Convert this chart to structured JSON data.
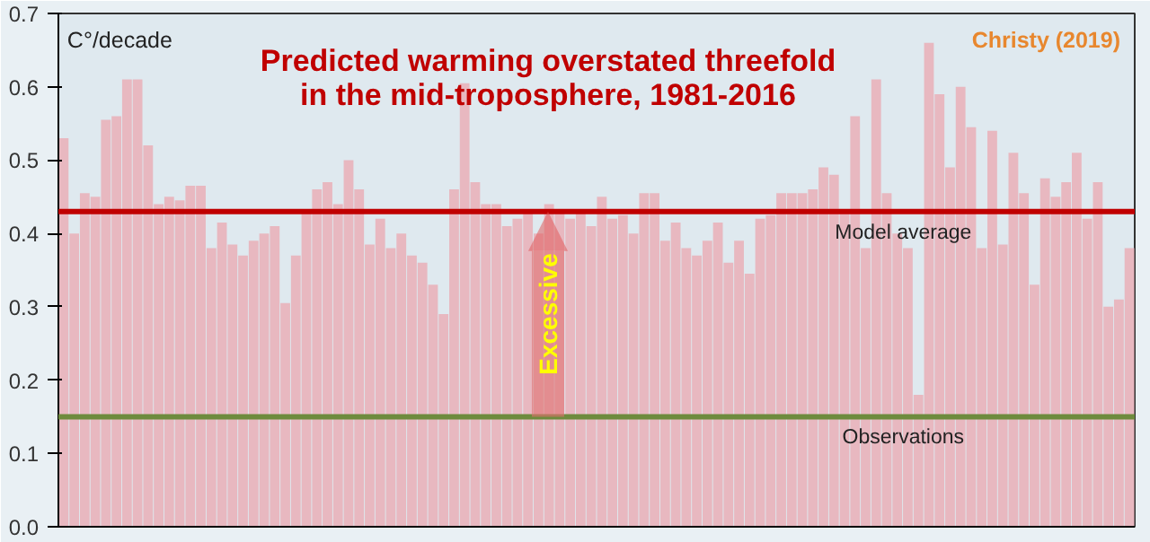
{
  "chart_data": {
    "type": "bar",
    "title": "Predicted warming overstated threefold\nin the mid-troposphere, 1981-2016",
    "ylabel": "C°/decade",
    "annotations": [
      "Christy (2019)",
      "Excessive"
    ],
    "categories": [
      null,
      null,
      null,
      null,
      null,
      null,
      null,
      null,
      null,
      null,
      null,
      null,
      null,
      null,
      null,
      null,
      null,
      null,
      null,
      null,
      null,
      null,
      null,
      null,
      null,
      null,
      null,
      null,
      null,
      null,
      null,
      null,
      null,
      null,
      null,
      null,
      null,
      null,
      null,
      null,
      null,
      null,
      null,
      null,
      null,
      null,
      null,
      null,
      null,
      null,
      null,
      null,
      null,
      null,
      null,
      null,
      null,
      null,
      null,
      null,
      null,
      null,
      null,
      null,
      null,
      null,
      null,
      null,
      null,
      null,
      null,
      null,
      null,
      null,
      null,
      null,
      null,
      null,
      null,
      null,
      null,
      null,
      null,
      null,
      null,
      null,
      null,
      null,
      null,
      null,
      null,
      null,
      null,
      null,
      null,
      null,
      null,
      null,
      null,
      null,
      null,
      null
    ],
    "values": [
      0.53,
      0.4,
      0.455,
      0.45,
      0.555,
      0.56,
      0.61,
      0.61,
      0.52,
      0.44,
      0.45,
      0.445,
      0.465,
      0.465,
      0.38,
      0.415,
      0.385,
      0.37,
      0.39,
      0.4,
      0.41,
      0.305,
      0.37,
      0.43,
      0.46,
      0.47,
      0.44,
      0.5,
      0.46,
      0.385,
      0.42,
      0.38,
      0.4,
      0.37,
      0.36,
      0.33,
      0.29,
      0.46,
      0.605,
      0.47,
      0.44,
      0.44,
      0.41,
      0.42,
      0.43,
      0.4,
      0.44,
      0.43,
      0.42,
      0.43,
      0.41,
      0.45,
      0.42,
      0.425,
      0.4,
      0.455,
      0.455,
      0.39,
      0.415,
      0.38,
      0.37,
      0.39,
      0.415,
      0.36,
      0.39,
      0.345,
      0.42,
      0.425,
      0.455,
      0.455,
      0.455,
      0.46,
      0.49,
      0.48,
      0.43,
      0.56,
      0.38,
      0.61,
      0.455,
      0.4,
      0.38,
      0.18,
      0.66,
      0.59,
      0.49,
      0.6,
      0.545,
      0.38,
      0.54,
      0.385,
      0.51,
      0.455,
      0.33,
      0.475,
      0.45,
      0.47,
      0.51,
      0.42,
      0.47,
      0.3,
      0.31,
      0.38
    ],
    "color": "#e8b5bd",
    "ylim": [
      0,
      0.7
    ],
    "yticks": [
      {
        "value": 0,
        "label": "0.0"
      },
      0.1,
      0.2,
      0.3,
      0.4,
      0.5,
      0.6,
      0.7
    ],
    "ref_lines": [
      {
        "axis": "y",
        "value": 0.43,
        "label": "Model average",
        "color": "#c00000"
      },
      {
        "axis": "y",
        "value": 0.15,
        "label": "Observations",
        "color": "#6e8b3d"
      }
    ],
    "tick_labels": "y",
    "grid": false
  }
}
